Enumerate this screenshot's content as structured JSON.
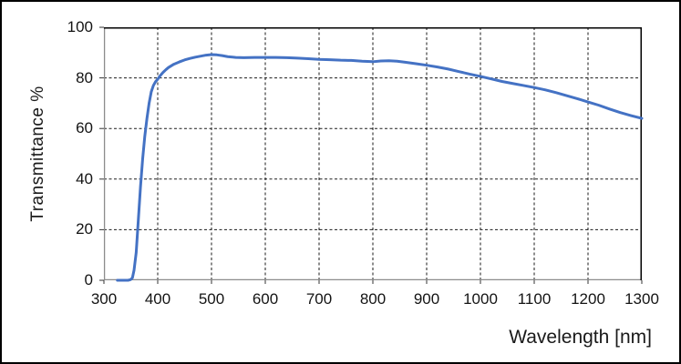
{
  "figure": {
    "background": "#ffffff",
    "outer_border_color": "#000000"
  },
  "chart_data": {
    "type": "line",
    "title": "",
    "xlabel": "Wavelength [nm]",
    "ylabel": "Transmittance %",
    "xlim": [
      300,
      1300
    ],
    "ylim": [
      0,
      100
    ],
    "x_ticks": [
      300,
      400,
      500,
      600,
      700,
      800,
      900,
      1000,
      1100,
      1200,
      1300
    ],
    "y_ticks": [
      0,
      20,
      40,
      60,
      80,
      100
    ],
    "grid": "dashed",
    "grid_color": "#1a1a1a",
    "axis_color": "#8c8c8c",
    "box_color": "#000000",
    "legend": "none",
    "series": [
      {
        "name": "Transmittance",
        "color": "#4472C4",
        "line_width": 3,
        "points": [
          [
            325,
            0
          ],
          [
            335,
            0
          ],
          [
            345,
            0
          ],
          [
            350,
            0.3
          ],
          [
            353,
            1
          ],
          [
            356,
            4
          ],
          [
            360,
            11
          ],
          [
            364,
            24
          ],
          [
            368,
            37
          ],
          [
            372,
            48
          ],
          [
            376,
            57
          ],
          [
            380,
            64
          ],
          [
            384,
            70
          ],
          [
            388,
            74.5
          ],
          [
            392,
            77
          ],
          [
            396,
            78.5
          ],
          [
            400,
            79.5
          ],
          [
            405,
            81
          ],
          [
            410,
            82.2
          ],
          [
            415,
            83.2
          ],
          [
            420,
            84.1
          ],
          [
            430,
            85.4
          ],
          [
            440,
            86.3
          ],
          [
            450,
            87.1
          ],
          [
            460,
            87.7
          ],
          [
            470,
            88.2
          ],
          [
            480,
            88.6
          ],
          [
            490,
            89
          ],
          [
            500,
            89.2
          ],
          [
            510,
            89.1
          ],
          [
            520,
            88.8
          ],
          [
            530,
            88.4
          ],
          [
            545,
            88.1
          ],
          [
            560,
            88
          ],
          [
            580,
            88.1
          ],
          [
            600,
            88.1
          ],
          [
            620,
            88.1
          ],
          [
            640,
            88
          ],
          [
            660,
            87.8
          ],
          [
            680,
            87.6
          ],
          [
            700,
            87.3
          ],
          [
            720,
            87.2
          ],
          [
            740,
            87
          ],
          [
            760,
            86.9
          ],
          [
            780,
            86.6
          ],
          [
            800,
            86.4
          ],
          [
            815,
            86.7
          ],
          [
            830,
            86.8
          ],
          [
            845,
            86.6
          ],
          [
            860,
            86.2
          ],
          [
            880,
            85.6
          ],
          [
            900,
            85
          ],
          [
            920,
            84.3
          ],
          [
            940,
            83.5
          ],
          [
            960,
            82.5
          ],
          [
            980,
            81.5
          ],
          [
            1000,
            80.6
          ],
          [
            1020,
            79.6
          ],
          [
            1040,
            78.6
          ],
          [
            1060,
            77.8
          ],
          [
            1080,
            77
          ],
          [
            1100,
            76.2
          ],
          [
            1120,
            75.3
          ],
          [
            1140,
            74.2
          ],
          [
            1160,
            73
          ],
          [
            1180,
            71.8
          ],
          [
            1200,
            70.5
          ],
          [
            1220,
            69.2
          ],
          [
            1240,
            67.7
          ],
          [
            1260,
            66.3
          ],
          [
            1280,
            65.1
          ],
          [
            1300,
            64
          ]
        ]
      }
    ]
  }
}
